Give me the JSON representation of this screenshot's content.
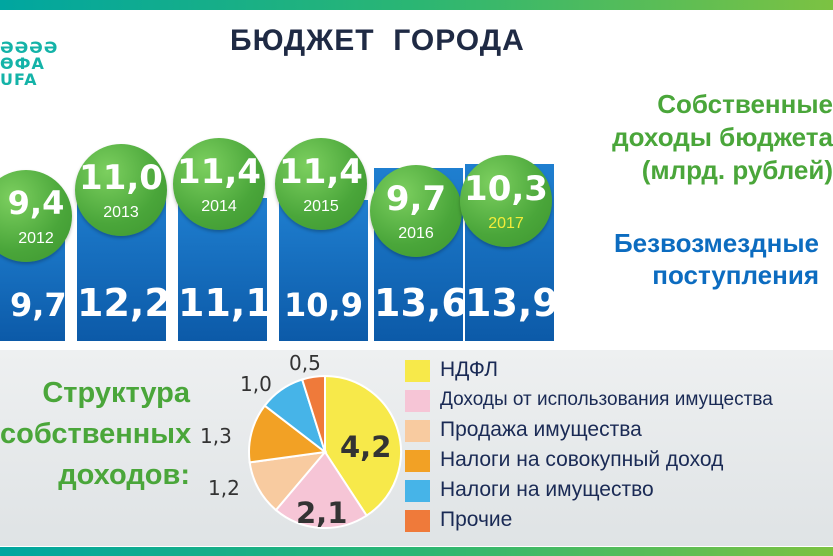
{
  "title": "БЮДЖЕТ  ГОРОДА",
  "logo": {
    "lines": [
      "ƏƏƏƏ",
      "ӨФА",
      "UFA"
    ]
  },
  "legend": {
    "own_income": [
      "Собственные",
      "доходы бюджета",
      "(млрд. рублей)"
    ],
    "grants": [
      "Безвозмездные",
      "поступления"
    ]
  },
  "chart_data": [
    {
      "type": "bar",
      "categories": [
        "2012",
        "2013",
        "2014",
        "2015",
        "2016",
        "2017"
      ],
      "series": [
        {
          "name": "Собственные доходы бюджета (млрд. рублей)",
          "values": [
            9.4,
            11.0,
            11.4,
            11.4,
            9.7,
            10.3
          ],
          "labels": [
            "9,4",
            "11,0",
            "11,4",
            "11,4",
            "9,7",
            "10,3"
          ]
        },
        {
          "name": "Безвозмездные поступления",
          "values": [
            9.7,
            12.2,
            11.1,
            10.9,
            13.6,
            13.9
          ],
          "labels": [
            "9,7",
            "12,2",
            "11,1",
            "10,9",
            "13,6",
            "13,9"
          ]
        }
      ],
      "colors": {
        "own": "#4aa63a",
        "grants": "#0c6cc0",
        "highlight_year": "#f4ec3a"
      }
    },
    {
      "type": "pie",
      "title": [
        "Структура",
        "собственных",
        "доходов:"
      ],
      "slices": [
        {
          "name": "НДФЛ",
          "value": 4.2,
          "label": "4,2",
          "color": "#f7e94a"
        },
        {
          "name": "Доходы от использования имущества",
          "value": 2.1,
          "label": "2,1",
          "color": "#f6c5d6"
        },
        {
          "name": "Продажа имущества",
          "value": 1.2,
          "label": "1,2",
          "color": "#f8cba0"
        },
        {
          "name": "Налоги на совокупный доход",
          "value": 1.3,
          "label": "1,3",
          "color": "#f2a125"
        },
        {
          "name": "Налоги на имущество",
          "value": 1.0,
          "label": "1,0",
          "color": "#46b4e8"
        },
        {
          "name": "Прочие",
          "value": 0.5,
          "label": "0,5",
          "color": "#ef7a3a"
        }
      ]
    }
  ]
}
